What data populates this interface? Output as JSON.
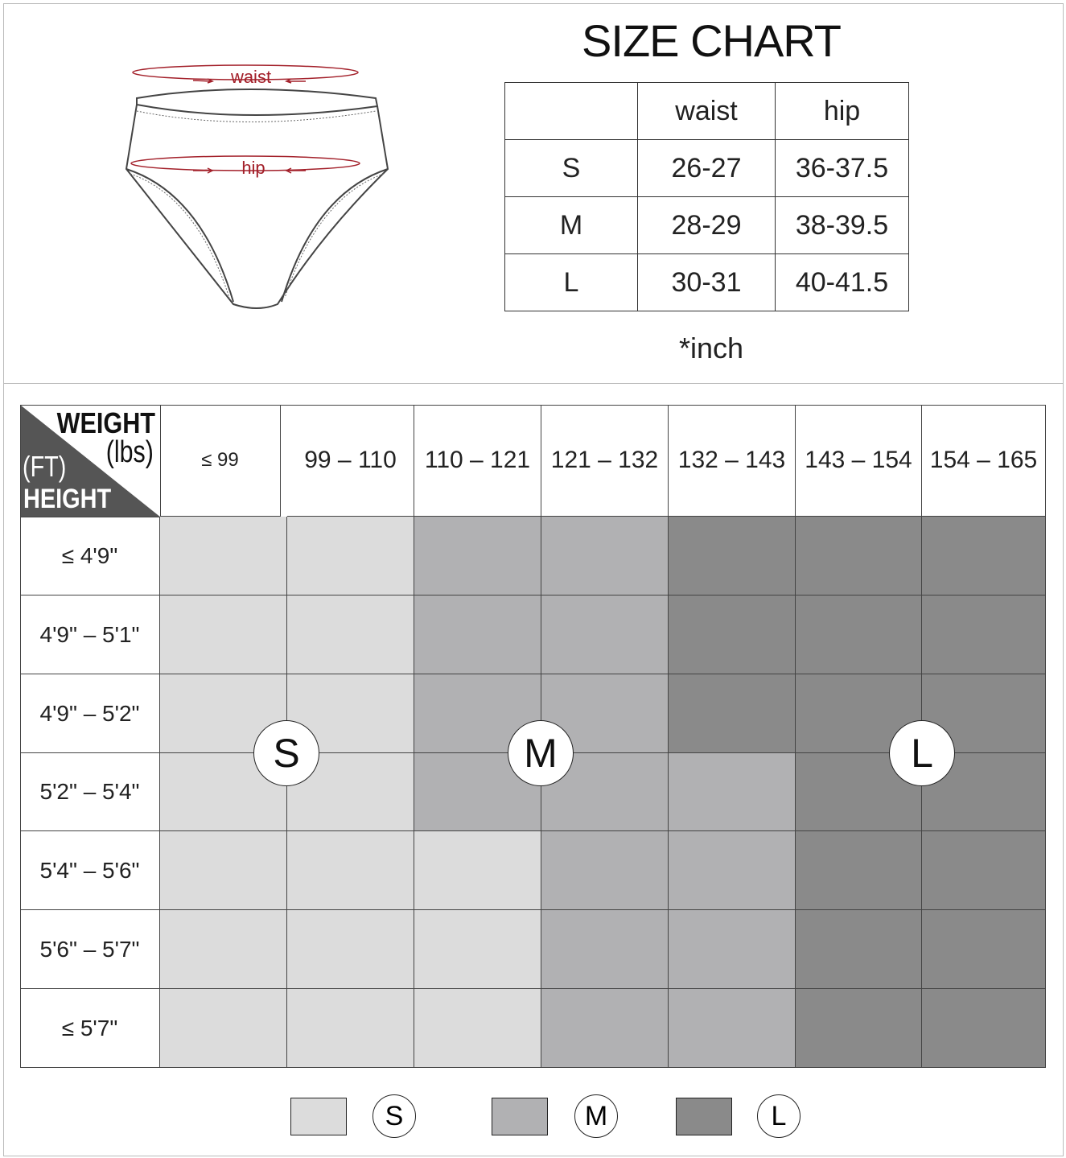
{
  "title": "SIZE CHART",
  "illustration": {
    "waist_label": "waist",
    "hip_label": "hip",
    "accent": "#a3202a"
  },
  "size_table": {
    "headers": [
      "",
      "waist",
      "hip"
    ],
    "rows": [
      [
        "S",
        "26-27",
        "36-37.5"
      ],
      [
        "M",
        "28-29",
        "38-39.5"
      ],
      [
        "L",
        "30-31",
        "40-41.5"
      ]
    ],
    "unit": "*inch"
  },
  "fit_chart": {
    "corner": {
      "weight": "WEIGHT",
      "weight_unit": "(lbs)",
      "height_unit": "(FT)",
      "height": "HEIGHT"
    },
    "weight_columns": [
      "≤ 99",
      "99 – 110",
      "110 – 121",
      "121 – 132",
      "132 – 143",
      "143 – 154",
      "154 – 165"
    ],
    "height_rows": [
      "≤  4'9\"",
      "4'9\" – 5'1\"",
      "4'9\" – 5'2\"",
      "5'2\" – 5'4\"",
      "5'4\" – 5'6\"",
      "5'6\" – 5'7\"",
      "≤  5'7\""
    ],
    "sizes": [
      [
        "S",
        "S",
        "M",
        "M",
        "L",
        "L",
        "L"
      ],
      [
        "S",
        "S",
        "M",
        "M",
        "L",
        "L",
        "L"
      ],
      [
        "S",
        "S",
        "M",
        "M",
        "L",
        "L",
        "L"
      ],
      [
        "S",
        "S",
        "M",
        "M",
        "M",
        "L",
        "L"
      ],
      [
        "S",
        "S",
        "S",
        "M",
        "M",
        "L",
        "L"
      ],
      [
        "S",
        "S",
        "S",
        "M",
        "M",
        "L",
        "L"
      ],
      [
        "S",
        "S",
        "S",
        "M",
        "M",
        "L",
        "L"
      ]
    ],
    "region_labels": [
      "S",
      "M",
      "L"
    ],
    "colors": {
      "S": "#dcdcdc",
      "M": "#b1b1b3",
      "L": "#8a8a8a",
      "corner": "#555555"
    }
  },
  "legend": [
    {
      "size": "S"
    },
    {
      "size": "M"
    },
    {
      "size": "L"
    }
  ]
}
